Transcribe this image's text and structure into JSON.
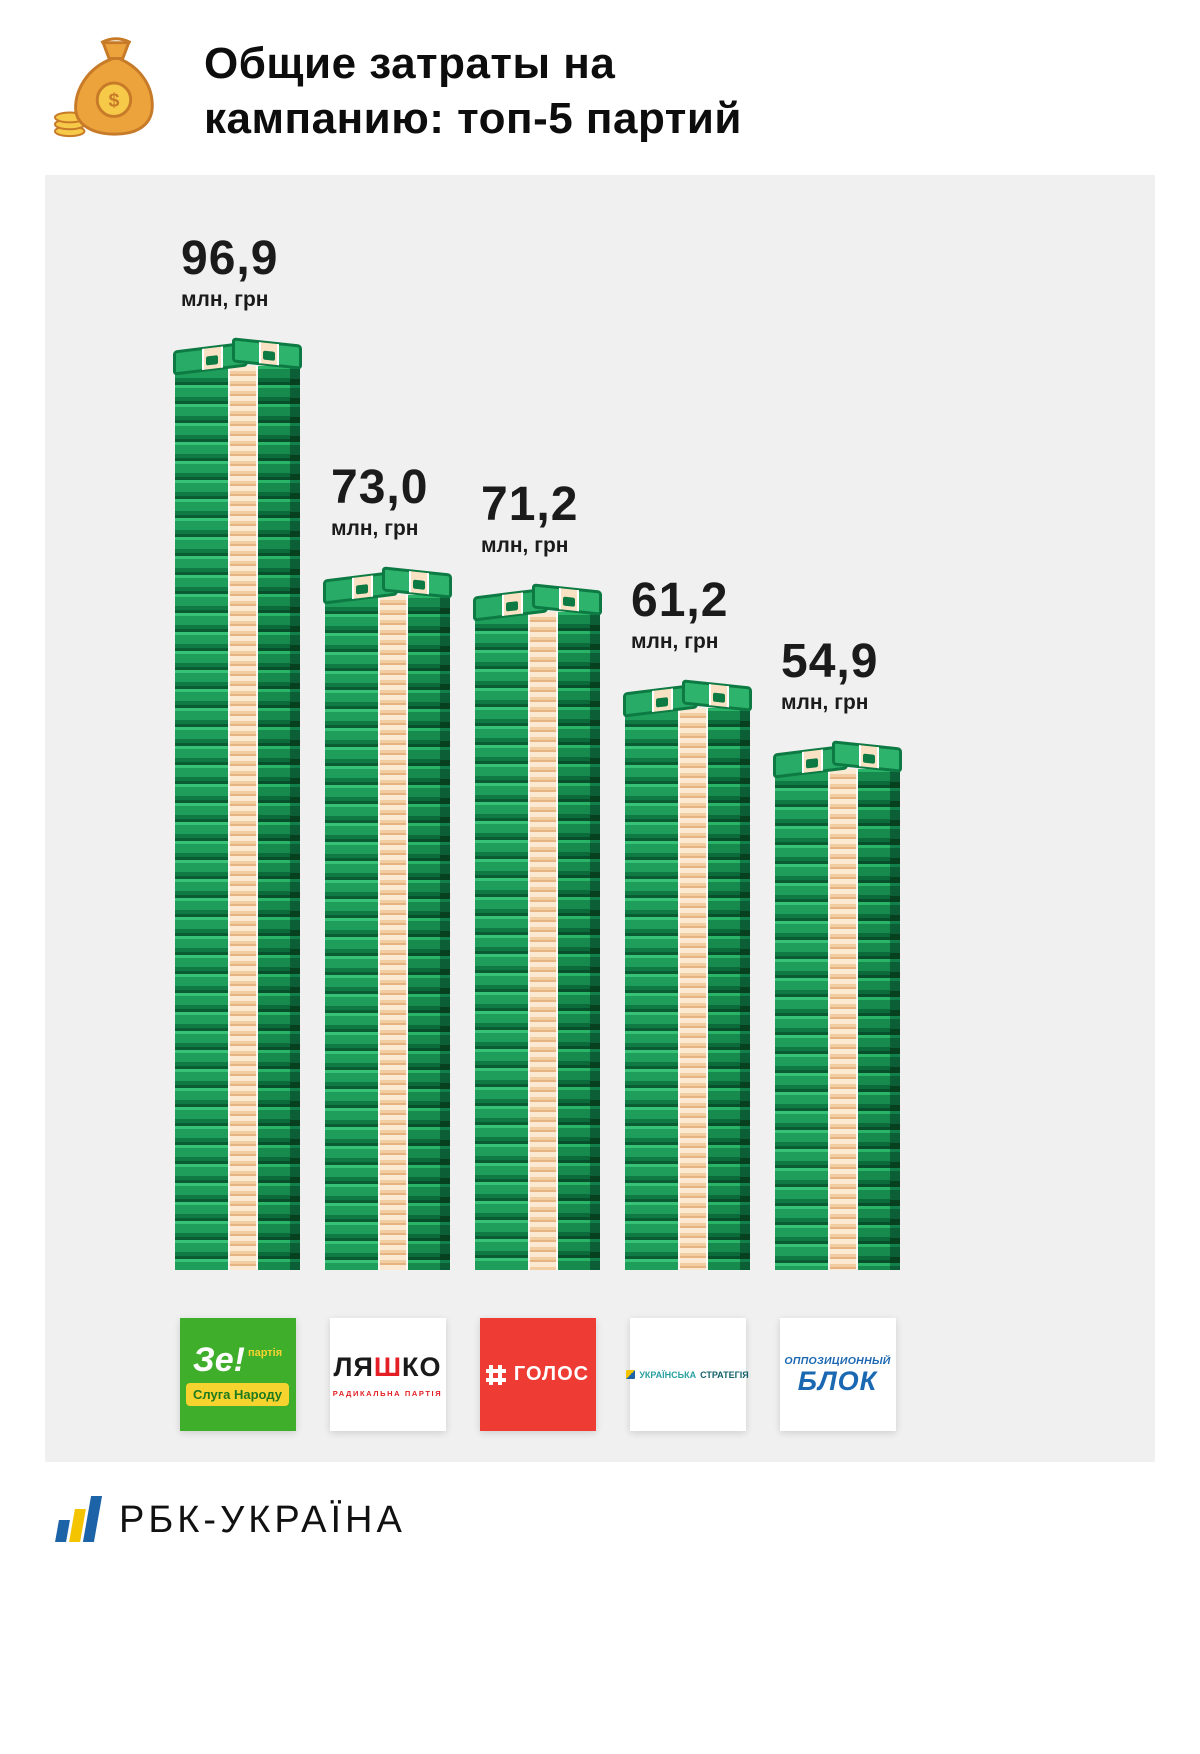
{
  "header": {
    "title_line1": "Общие затраты на",
    "title_line2": "кампанию: топ-5 партий"
  },
  "chart_data": {
    "type": "bar",
    "title": "Общие затраты на кампанию: топ-5 партий",
    "unit_label": "млн, грн",
    "categories": [
      "Зе! партія Слуга Народу",
      "Радикальна партія Ляшка",
      "Голос",
      "Українська Стратегія",
      "Оппозиционный Блок"
    ],
    "values": [
      96.9,
      73.0,
      71.2,
      61.2,
      54.9
    ],
    "value_labels": [
      "96,9",
      "73,0",
      "71,2",
      "61,2",
      "54,9"
    ],
    "ylim": [
      0,
      100
    ],
    "legend_position": "bottom",
    "bar_style": "isometric money stacks"
  },
  "logos": {
    "sluga": {
      "ze": "Зе!",
      "partiya": "партія",
      "band": "Слуга Народу"
    },
    "lyashko": {
      "lya": "ЛЯ",
      "sh": "Ш",
      "ko": "КО",
      "sub": "РАДИКАЛЬНА ПАРТІЯ"
    },
    "golos": {
      "title": "ГОЛОС"
    },
    "strategiya": {
      "word1": "УКРАЇНСЬКА",
      "word2": "СТРАТЕГІЯ"
    },
    "oppoblok": {
      "line1": "ОППОЗИЦИОННЫЙ",
      "line2": "БЛОК"
    }
  },
  "footer": {
    "brand": "РБК-УКРАЇНА"
  },
  "colors": {
    "panel_gray": "#f0f0f0",
    "money_green": "#1f9e5b",
    "money_green_dark": "#0c6b3b",
    "money_peach": "#fbe9d2",
    "sluga_green": "#3fae2b",
    "sluga_yellow": "#f7d330",
    "lyashko_red": "#e31e24",
    "golos_red": "#ee3b33",
    "strategiya_teal": "#2aa0a0",
    "opposition_blue": "#1a67b2",
    "rbc_blue": "#1c63a8",
    "rbc_yellow": "#f5c400"
  }
}
